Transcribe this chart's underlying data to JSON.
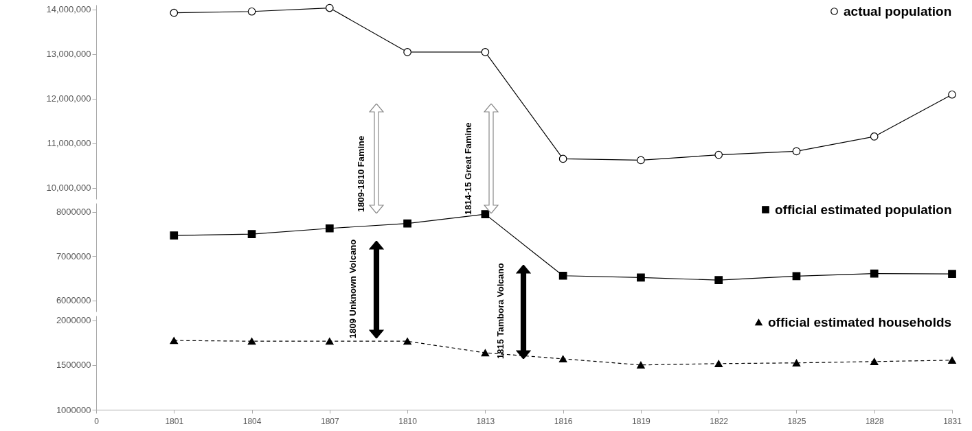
{
  "chart_data": [
    {
      "type": "line",
      "categories": [
        "0",
        "1801",
        "1804",
        "1807",
        "1810",
        "1813",
        "1816",
        "1819",
        "1822",
        "1825",
        "1828",
        "1831"
      ],
      "series": [
        {
          "name": "actual population",
          "color": "#000000",
          "values": [
            null,
            13920000,
            13950000,
            14030000,
            13040000,
            13040000,
            10650000,
            10620000,
            10740000,
            10820000,
            11150000,
            12090000
          ]
        }
      ],
      "ylim": [
        9750000,
        14100000
      ],
      "yticks": [
        {
          "value": 10000000,
          "label": "10,000,000"
        },
        {
          "value": 11000000,
          "label": "11,000,000"
        },
        {
          "value": 12000000,
          "label": "12,000,000"
        },
        {
          "value": 13000000,
          "label": "13,000,000"
        },
        {
          "value": 14000000,
          "label": "14,000,000"
        }
      ],
      "tick_labels": "y",
      "marker": "circle",
      "line_style": "solid",
      "legend": "top right",
      "grid": false,
      "annotations": [
        "1809-1810  Famine",
        "1814-15 Great Famine"
      ]
    },
    {
      "type": "line",
      "categories": [
        "0",
        "1801",
        "1804",
        "1807",
        "1810",
        "1813",
        "1816",
        "1819",
        "1822",
        "1825",
        "1828",
        "1831"
      ],
      "series": [
        {
          "name": "official estimated population",
          "color": "#000000",
          "values": [
            null,
            7470000,
            7500000,
            7630000,
            7740000,
            7950000,
            6560000,
            6520000,
            6460000,
            6550000,
            6610000,
            6600000
          ]
        }
      ],
      "ylim": [
        5750000,
        8200000
      ],
      "yticks": [
        6000000,
        7000000,
        8000000
      ],
      "tick_labels": "y",
      "marker": "square",
      "line_style": "solid",
      "legend": "top right",
      "grid": false,
      "annotations": [
        "1809 Unknown Volcano",
        "1815 Tambora Volcano"
      ]
    },
    {
      "type": "line",
      "categories": [
        "0",
        "1801",
        "1804",
        "1807",
        "1810",
        "1813",
        "1816",
        "1819",
        "1822",
        "1825",
        "1828",
        "1831"
      ],
      "series": [
        {
          "name": "official estimated households",
          "color": "#000000",
          "values": [
            null,
            1773000,
            1765000,
            1765000,
            1765000,
            1636000,
            1568000,
            1500000,
            1515000,
            1523000,
            1538000,
            1553000
          ]
        }
      ],
      "ylim": [
        1000000,
        2050000
      ],
      "yticks": [
        1000000,
        1500000,
        2000000
      ],
      "marker": "triangle",
      "line_style": "dashed",
      "legend": "top right",
      "grid": false
    }
  ]
}
